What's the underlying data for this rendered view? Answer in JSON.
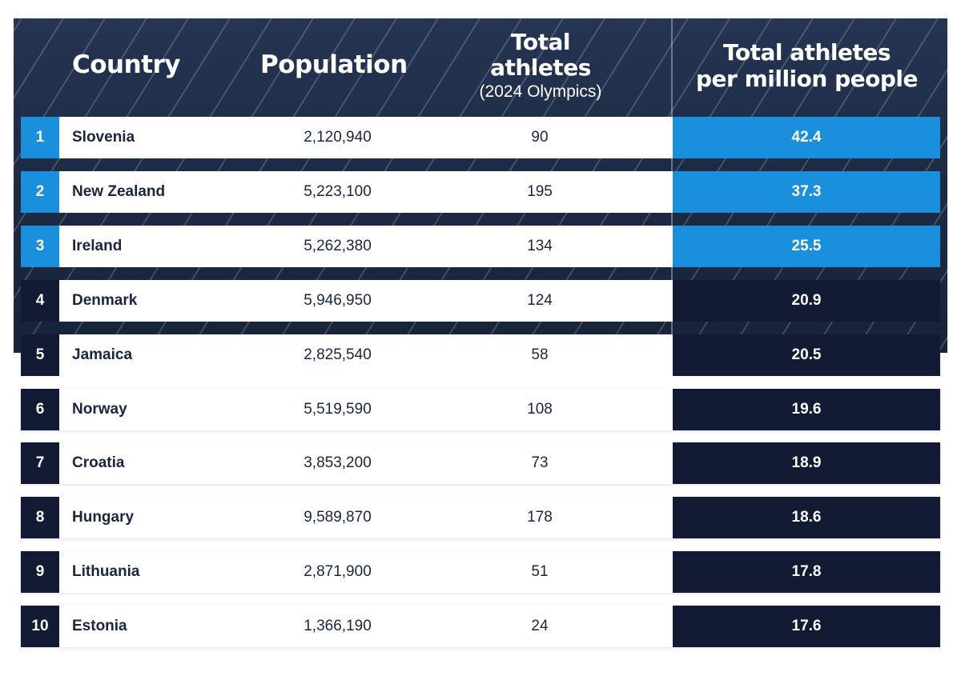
{
  "header": {
    "country": "Country",
    "population": "Population",
    "total_line1": "Total",
    "total_line2": "athletes",
    "total_sub": "(2024 Olympics)",
    "per_line1": "Total athletes",
    "per_line2": "per million people"
  },
  "colors": {
    "highlight": "#1a8fdc",
    "dark": "#121b33",
    "banner": "#1d2b45",
    "text": "#1b2540"
  },
  "icons": [
    "running-track-background"
  ],
  "chart_data": {
    "type": "table",
    "columns": [
      "Country",
      "Population",
      "Total athletes (2024 Olympics)",
      "Total athletes per million people"
    ],
    "rows": [
      {
        "rank": "1",
        "country": "Slovenia",
        "population": "2,120,940",
        "athletes": "90",
        "per_million": "42.4"
      },
      {
        "rank": "2",
        "country": "New Zealand",
        "population": "5,223,100",
        "athletes": "195",
        "per_million": "37.3"
      },
      {
        "rank": "3",
        "country": "Ireland",
        "population": "5,262,380",
        "athletes": "134",
        "per_million": "25.5"
      },
      {
        "rank": "4",
        "country": "Denmark",
        "population": "5,946,950",
        "athletes": "124",
        "per_million": "20.9"
      },
      {
        "rank": "5",
        "country": "Jamaica",
        "population": "2,825,540",
        "athletes": "58",
        "per_million": "20.5"
      },
      {
        "rank": "6",
        "country": "Norway",
        "population": "5,519,590",
        "athletes": "108",
        "per_million": "19.6"
      },
      {
        "rank": "7",
        "country": "Croatia",
        "population": "3,853,200",
        "athletes": "73",
        "per_million": "18.9"
      },
      {
        "rank": "8",
        "country": "Hungary",
        "population": "9,589,870",
        "athletes": "178",
        "per_million": "18.6"
      },
      {
        "rank": "9",
        "country": "Lithuania",
        "population": "2,871,900",
        "athletes": "51",
        "per_million": "17.8"
      },
      {
        "rank": "10",
        "country": "Estonia",
        "population": "1,366,190",
        "athletes": "24",
        "per_million": "17.6"
      }
    ]
  }
}
